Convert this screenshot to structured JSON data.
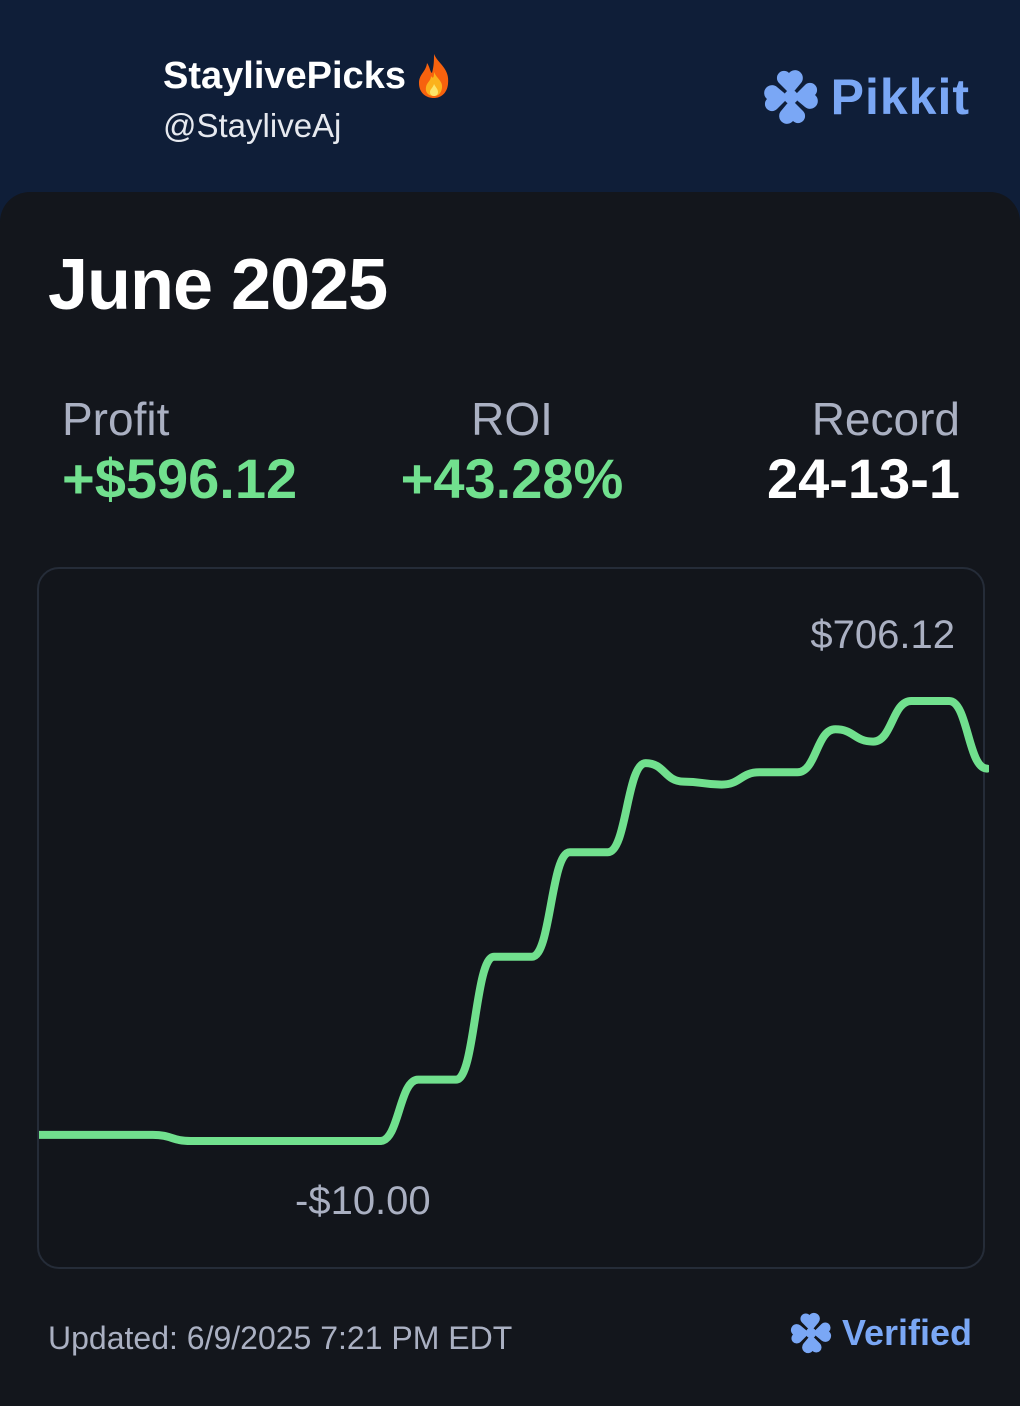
{
  "profile": {
    "display_name": "StaylivePicks",
    "handle": "@StayliveAj"
  },
  "brand": {
    "name": "Pikkit",
    "color": "#7aa7f5"
  },
  "period": {
    "title": "June 2025"
  },
  "stats": {
    "profit_label": "Profit",
    "profit_value": "+$596.12",
    "roi_label": "ROI",
    "roi_value": "+43.28%",
    "record_label": "Record",
    "record_value": "24-13-1"
  },
  "colors": {
    "positive": "#71e08e",
    "muted": "#aab0c2",
    "card_bg": "#13161c",
    "header_bg": "#0f1e38"
  },
  "chart_data": {
    "type": "line",
    "title": "",
    "xlabel": "",
    "ylabel": "",
    "max_label": "$706.12",
    "min_label": "-$10.00",
    "ylim": [
      -10.0,
      706.12
    ],
    "grid": false,
    "series": [
      {
        "values": [
          0,
          0,
          0,
          0,
          -10,
          -10,
          -10,
          -10,
          -10,
          -10,
          90,
          90,
          290,
          290,
          460,
          460,
          605,
          575,
          570,
          590,
          590,
          660,
          640,
          706.12,
          706.12,
          596.12
        ]
      }
    ]
  },
  "footer": {
    "updated": "Updated: 6/9/2025 7:21 PM EDT",
    "verified_label": "Verified"
  },
  "icons": {
    "emoji": "fire-icon",
    "brand_logo": "clover-logo-icon",
    "verified_logo": "clover-verified-icon"
  }
}
